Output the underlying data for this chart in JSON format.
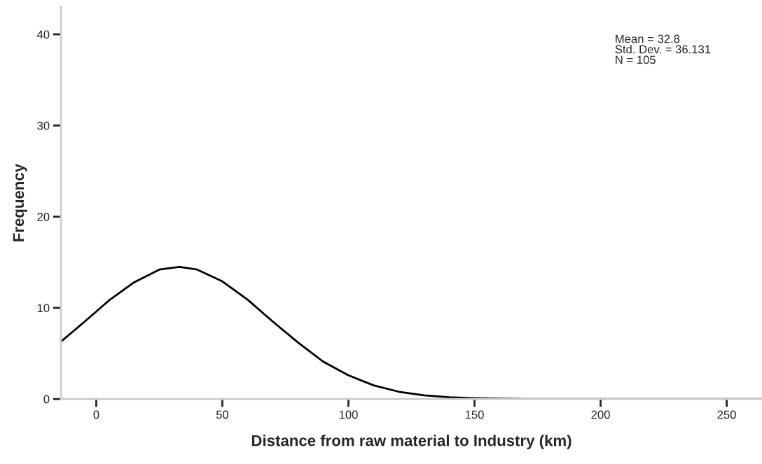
{
  "chart_data": {
    "type": "line",
    "xlabel": "Distance from raw material to Industry (km)",
    "ylabel": "Frequency",
    "x": [
      -14,
      -5,
      5,
      15,
      25,
      33,
      40,
      50,
      60,
      70,
      80,
      90,
      100,
      110,
      120,
      130,
      140,
      150,
      170,
      200,
      230,
      264
    ],
    "series": [
      {
        "color": "#000000",
        "values": [
          6.3,
          8.4,
          10.8,
          12.8,
          14.2,
          14.5,
          14.2,
          12.9,
          10.9,
          8.5,
          6.2,
          4.1,
          2.6,
          1.5,
          0.8,
          0.4,
          0.2,
          0.1,
          0,
          0,
          0,
          0
        ]
      }
    ],
    "xlim": [
      -14,
      264
    ],
    "xticks": [
      0,
      50,
      100,
      150,
      200,
      250
    ],
    "ylim": [
      0,
      43
    ],
    "yticks": [
      0,
      10,
      20,
      30,
      40
    ],
    "annotations": [
      "Mean = 32.8\nStd. Dev. = 36.131\nN = 105"
    ],
    "grid": false,
    "legend": false,
    "marker": "none",
    "line_style": "solid"
  }
}
